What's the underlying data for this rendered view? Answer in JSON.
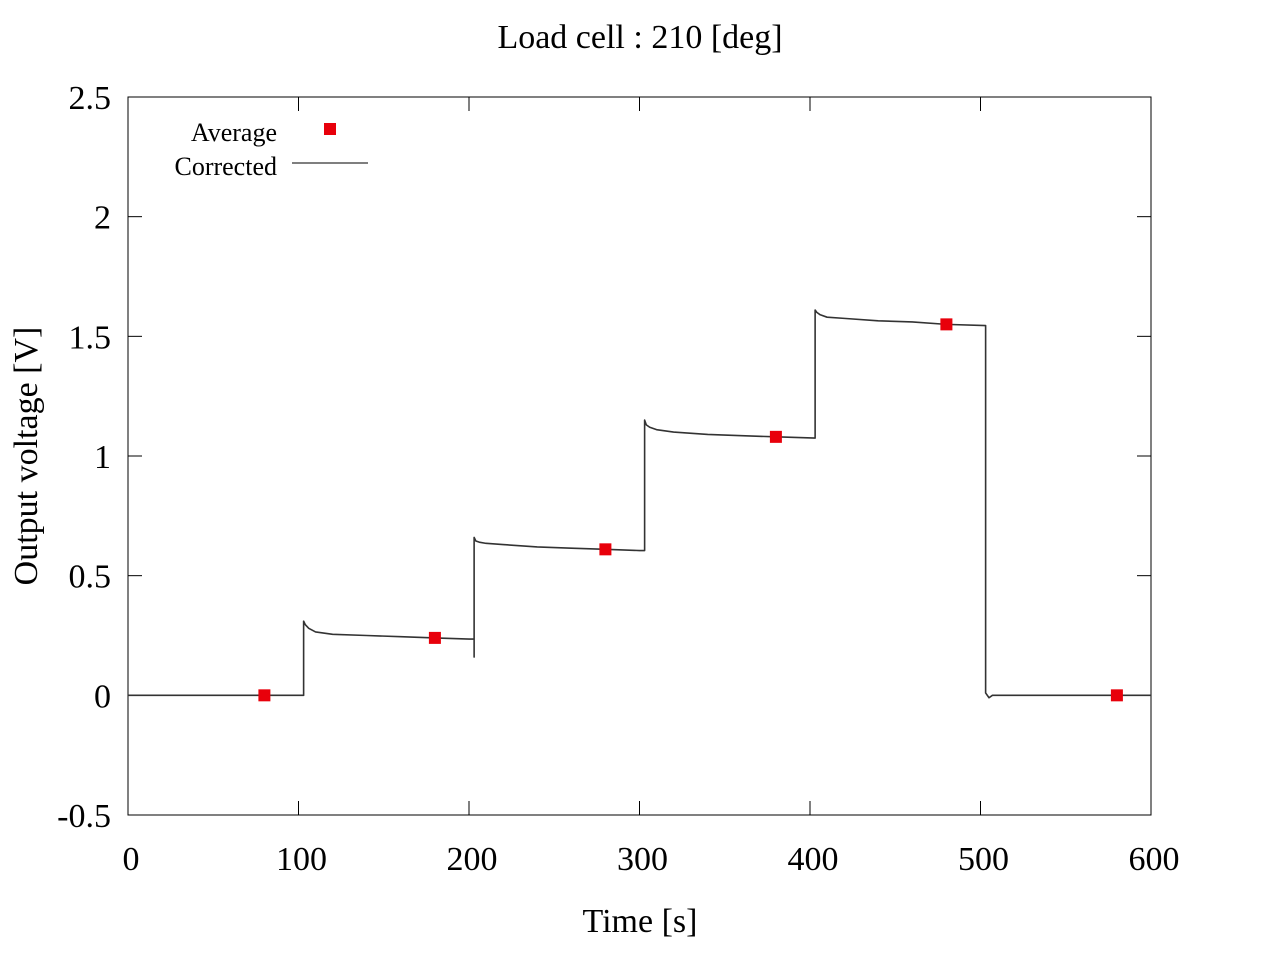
{
  "chart_data": {
    "type": "line",
    "title": "Load cell : 210 [deg]",
    "xlabel": "Time [s]",
    "ylabel": "Output voltage [V]",
    "xlim": [
      0,
      600
    ],
    "ylim": [
      -0.5,
      2.5
    ],
    "x_ticks": [
      0,
      100,
      200,
      300,
      400,
      500,
      600
    ],
    "y_ticks": [
      -0.5,
      0,
      0.5,
      1,
      1.5,
      2,
      2.5
    ],
    "x_tick_labels": [
      "0",
      "100",
      "200",
      "300",
      "400",
      "500",
      "600"
    ],
    "y_tick_labels": [
      "-0.5",
      "0",
      "0.5",
      "1",
      "1.5",
      "2",
      "2.5"
    ],
    "grid": false,
    "legend_position": "top-left",
    "series": [
      {
        "name": "Average",
        "kind": "scatter",
        "marker": "square",
        "color": "#e8000b",
        "x": [
          80,
          180,
          280,
          380,
          480,
          580
        ],
        "y": [
          0.0,
          0.24,
          0.61,
          1.08,
          1.55,
          0.0
        ]
      },
      {
        "name": "Corrected",
        "kind": "line",
        "color": "#333333",
        "x": [
          0,
          50,
          103,
          103,
          104,
          106,
          110,
          120,
          140,
          160,
          180,
          200,
          203,
          203,
          203,
          204,
          206,
          210,
          220,
          240,
          260,
          280,
          300,
          303,
          303,
          304,
          306,
          310,
          320,
          340,
          360,
          380,
          403,
          403,
          404,
          406,
          410,
          420,
          440,
          460,
          480,
          503,
          503,
          505,
          507,
          530,
          560,
          600
        ],
        "y": [
          0.0,
          0.0,
          0.0,
          0.31,
          0.295,
          0.28,
          0.265,
          0.255,
          0.25,
          0.245,
          0.24,
          0.235,
          0.235,
          0.16,
          0.66,
          0.645,
          0.64,
          0.635,
          0.63,
          0.62,
          0.615,
          0.61,
          0.605,
          0.605,
          1.15,
          1.13,
          1.12,
          1.11,
          1.1,
          1.09,
          1.085,
          1.08,
          1.075,
          1.61,
          1.6,
          1.59,
          1.58,
          1.575,
          1.565,
          1.56,
          1.55,
          1.545,
          0.01,
          -0.01,
          0.0,
          0.0,
          0.0,
          0.0
        ]
      }
    ]
  }
}
